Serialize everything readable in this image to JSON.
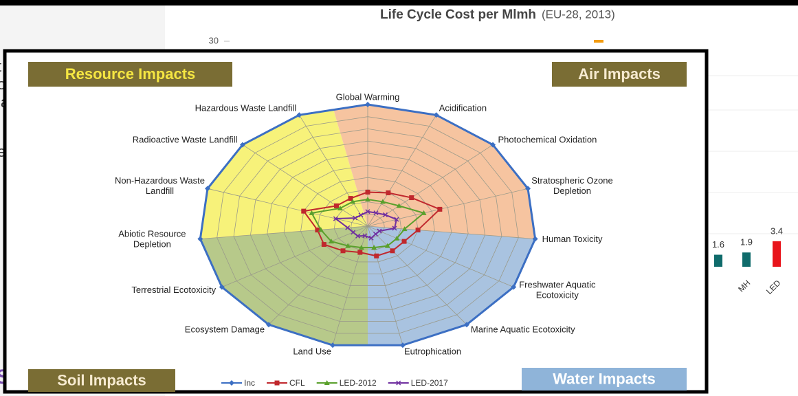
{
  "background_text": [
    "t",
    "o",
    "la",
    "e",
    "S"
  ],
  "background_chart": {
    "type": "bar",
    "title": "Life Cycle Cost per Mlmh",
    "subtitle": "(EU-28, 2013)",
    "categories": [
      null,
      "MH",
      "LED"
    ],
    "values": [
      1.6,
      1.9,
      3.4
    ],
    "colors": [
      "#0f6b6b",
      "#0f6b6b",
      "#e8141b"
    ],
    "ylim": [
      0,
      30
    ],
    "yticks": [
      30
    ],
    "highlight_color": "#f39c12"
  },
  "chart_data": {
    "type": "radar",
    "categories": [
      "Global Warming",
      "Acidification",
      "Photochemical Oxidation",
      "Stratospheric Ozone\nDepletion",
      "Human Toxicity",
      "Freshwater Aquatic\nEcotoxicity",
      "Marine Aquatic Ecotoxicity",
      "Eutrophication",
      "Land Use",
      "Ecosystem Damage",
      "Terrestrial Ecotoxicity",
      "Abiotic Resource\nDepletion",
      "Non-Hazardous Waste\nLandfill",
      "Radioactive Waste Landfill",
      "Hazardous Waste Landfill"
    ],
    "rlim": [
      0,
      100
    ],
    "rticks": [
      10,
      20,
      30,
      40,
      50,
      60,
      70,
      80,
      90,
      100
    ],
    "series": [
      {
        "name": "Inc",
        "color": "#3c6fc3",
        "marker": "diamond",
        "values": [
          100,
          100,
          100,
          100,
          100,
          100,
          100,
          100,
          100,
          100,
          100,
          100,
          100,
          100,
          100
        ]
      },
      {
        "name": "CFL",
        "color": "#c0282d",
        "marker": "square",
        "values": [
          28,
          30,
          35,
          45,
          30,
          25,
          25,
          25,
          22,
          25,
          30,
          30,
          40,
          25,
          25
        ]
      },
      {
        "name": "LED-2012",
        "color": "#5aa02c",
        "marker": "triangle",
        "values": [
          22,
          22,
          25,
          35,
          22,
          20,
          20,
          18,
          18,
          20,
          25,
          28,
          35,
          22,
          22
        ]
      },
      {
        "name": "LED-2017",
        "color": "#7030a0",
        "marker": "x",
        "values": [
          12,
          12,
          14,
          18,
          16,
          8,
          8,
          10,
          8,
          10,
          10,
          12,
          20,
          10,
          10
        ]
      }
    ],
    "regions": [
      {
        "label": "Resource Impacts",
        "color": "#f7f27a"
      },
      {
        "label": "Air Impacts",
        "color": "#f6c4a0"
      },
      {
        "label": "Water Impacts",
        "color": "#a9c3e0"
      },
      {
        "label": "Soil Impacts",
        "color": "#b7c98a"
      }
    ]
  }
}
